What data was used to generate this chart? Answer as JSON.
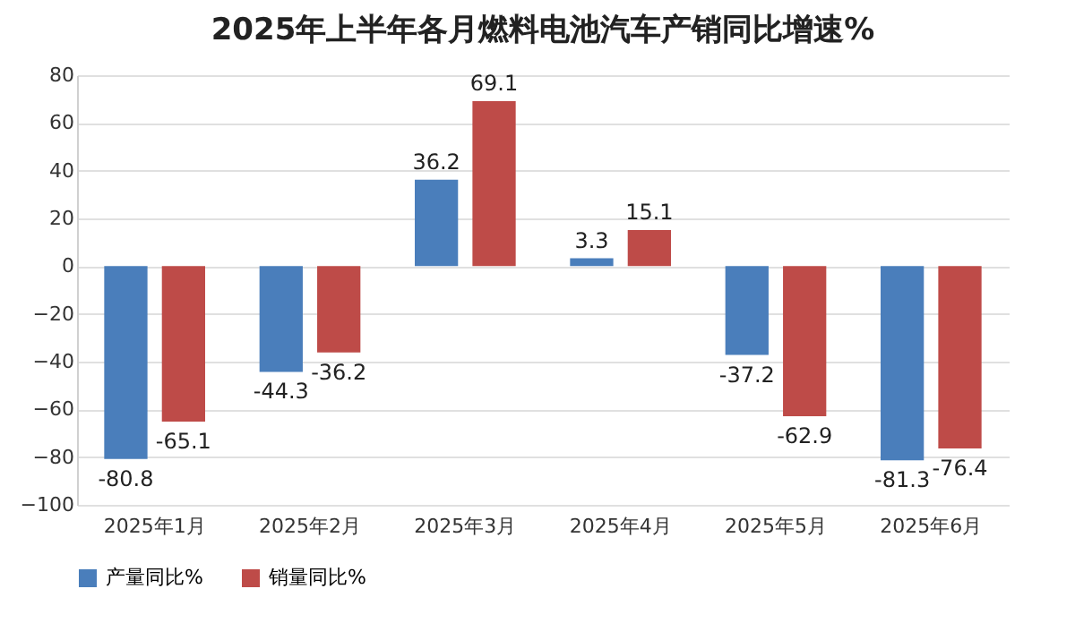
{
  "chart_data": {
    "type": "bar",
    "title": "2025年上半年各月燃料电池汽车产销同比增速%",
    "categories": [
      "2025年1月",
      "2025年2月",
      "2025年3月",
      "2025年4月",
      "2025年5月",
      "2025年6月"
    ],
    "series": [
      {
        "name": "产量同比%",
        "color": "#4a7ebb",
        "values": [
          -80.8,
          -44.3,
          36.2,
          3.3,
          -37.2,
          -81.3
        ]
      },
      {
        "name": "销量同比%",
        "color": "#be4b48",
        "values": [
          -65.1,
          -36.2,
          69.1,
          15.1,
          -62.9,
          -76.4
        ]
      }
    ],
    "ylim": [
      -100,
      80
    ],
    "yticks": [
      -100,
      -80,
      -60,
      -40,
      -20,
      0,
      20,
      40,
      60,
      80
    ],
    "grid": "y",
    "legend": "bottom",
    "data_labels": true
  }
}
